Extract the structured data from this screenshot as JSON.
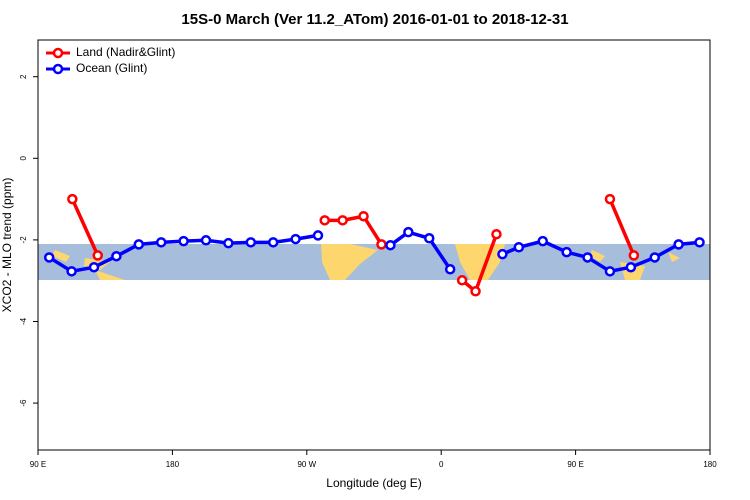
{
  "chart_data": {
    "type": "line",
    "title": "15S-0 March (Ver 11.2_ATom)   2016-01-01 to 2018-12-31",
    "x_label": "Longitude (deg E)",
    "y_label": "XCO2 - MLO trend (ppm)",
    "xlim": [
      90,
      540
    ],
    "ylim": [
      -7.15,
      2.9
    ],
    "xticks": [
      {
        "value": 90,
        "label": "90 E"
      },
      180,
      {
        "value": 270,
        "label": "90 W"
      },
      {
        "value": 360,
        "label": "0"
      },
      {
        "value": 450,
        "label": "90 E"
      },
      {
        "value": 540,
        "label": "180"
      }
    ],
    "yticks": [
      2,
      0,
      -2,
      -4,
      -6
    ],
    "legend": "top-left",
    "series": [
      {
        "name": "Land (Nadir&Glint)",
        "color": "#ff0000",
        "x": [
          113,
          130,
          null,
          282,
          294,
          308,
          320,
          null,
          374,
          383,
          397,
          null,
          473,
          489
        ],
        "values": [
          -1.0,
          -2.38,
          null,
          -1.52,
          -1.52,
          -1.42,
          -2.11,
          null,
          -2.99,
          -3.26,
          -1.86,
          null,
          -1.0,
          -2.38
        ]
      },
      {
        "name": "Ocean (Glint)",
        "color": "#0000ff",
        "x": [
          97.5,
          112.5,
          127.5,
          142.5,
          157.5,
          172.5,
          187.5,
          202.5,
          217.5,
          232.5,
          247.5,
          262.5,
          277.5,
          null,
          326,
          338,
          352,
          366,
          null,
          401,
          412,
          428,
          444,
          458,
          473,
          487,
          503,
          519,
          533
        ],
        "values": [
          -2.43,
          -2.77,
          -2.67,
          -2.4,
          -2.11,
          -2.06,
          -2.03,
          -2.01,
          -2.08,
          -2.06,
          -2.06,
          -1.98,
          -1.89,
          null,
          -2.13,
          -1.81,
          -1.96,
          -2.72,
          null,
          -2.35,
          -2.18,
          -2.03,
          -2.3,
          -2.43,
          -2.77,
          -2.67,
          -2.43,
          -2.11,
          -2.06
        ]
      }
    ]
  }
}
